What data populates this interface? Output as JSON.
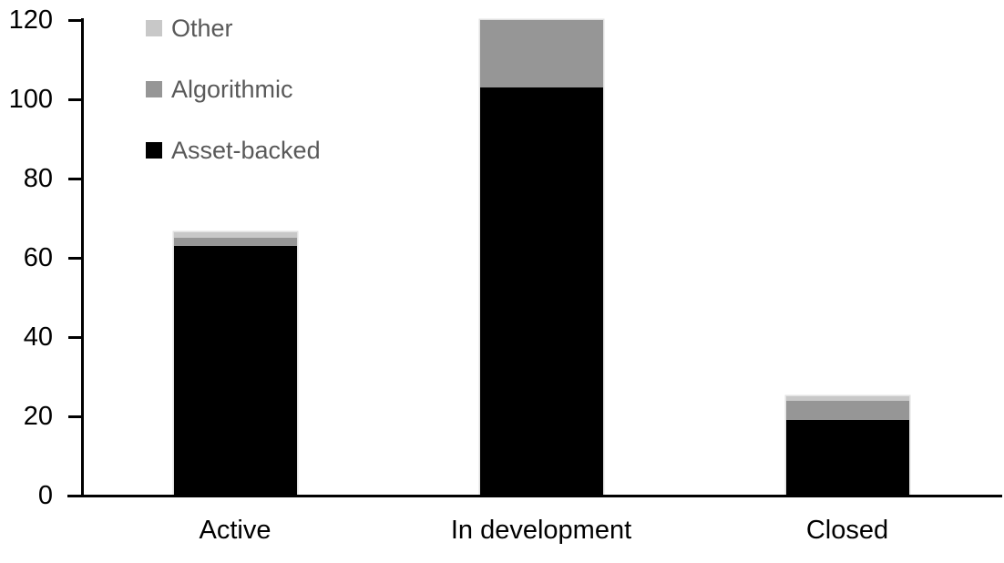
{
  "chart_data": {
    "type": "bar",
    "stacked": true,
    "title": "",
    "xlabel": "",
    "ylabel": "",
    "categories": [
      "Active",
      "In development",
      "Closed"
    ],
    "series": [
      {
        "name": "Other",
        "color": "#c8c8c8",
        "values": [
          1.5,
          0,
          1
        ]
      },
      {
        "name": "Algorithmic",
        "color": "#969696",
        "values": [
          2,
          17,
          5
        ]
      },
      {
        "name": "Asset-backed",
        "color": "#000000",
        "values": [
          63,
          103,
          19
        ]
      }
    ],
    "totals": [
      66.5,
      120,
      25
    ],
    "ylim": [
      0,
      120
    ],
    "yticks": [
      "0",
      "20",
      "40",
      "60",
      "80",
      "100",
      "120"
    ],
    "grid": false,
    "legend_position": "top-left-inside",
    "legend_order_top_to_bottom": [
      "Other",
      "Algorithmic",
      "Asset-backed"
    ]
  },
  "colors": {
    "background": "#ffffff",
    "axis": "#000000",
    "tick_label_text": "#000000",
    "category_label_text": "#000000",
    "legend_text": "#595959"
  }
}
